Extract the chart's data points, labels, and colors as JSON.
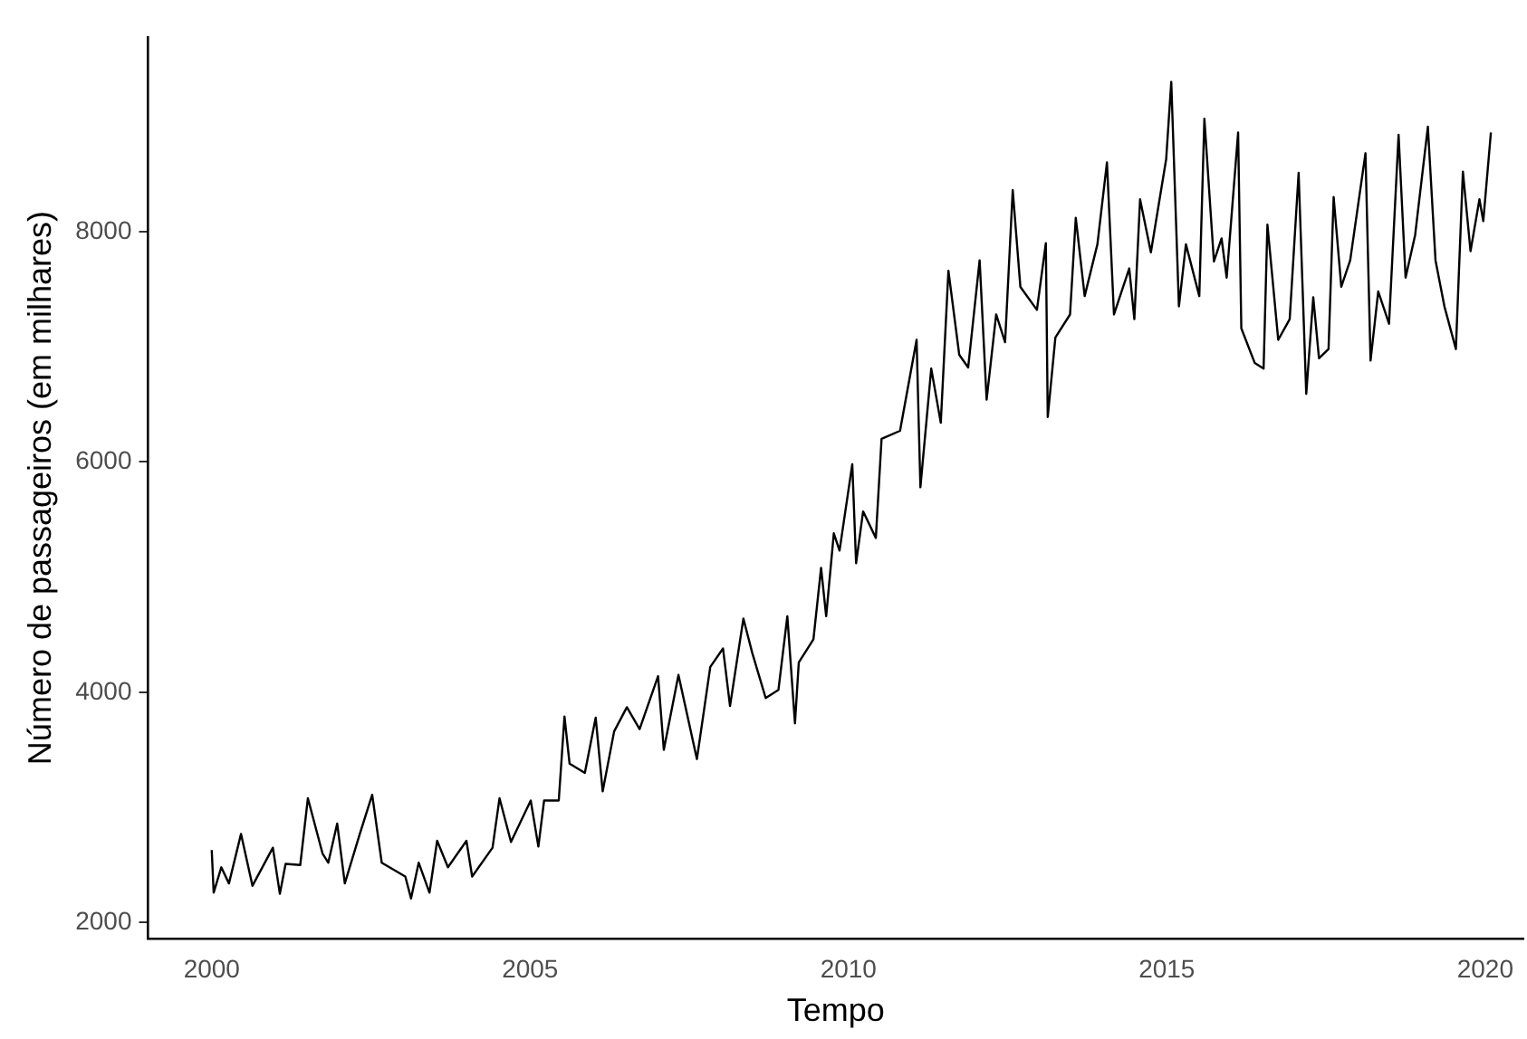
{
  "chart_data": {
    "type": "line",
    "xlabel": "Tempo",
    "ylabel": "Número de passageiros (em milhares)",
    "x": [
      2000.0,
      2000.03,
      2000.15,
      2000.27,
      2000.46,
      2000.64,
      2000.96,
      2001.07,
      2001.16,
      2001.39,
      2001.51,
      2001.74,
      2001.83,
      2001.97,
      2002.09,
      2002.32,
      2002.52,
      2002.67,
      2003.04,
      2003.13,
      2003.25,
      2003.42,
      2003.54,
      2003.71,
      2004.0,
      2004.09,
      2004.41,
      2004.52,
      2004.7,
      2005.01,
      2005.13,
      2005.22,
      2005.45,
      2005.54,
      2005.62,
      2005.86,
      2006.03,
      2006.14,
      2006.32,
      2006.52,
      2006.72,
      2007.01,
      2007.1,
      2007.33,
      2007.62,
      2007.83,
      2008.03,
      2008.14,
      2008.35,
      2008.49,
      2008.7,
      2008.9,
      2009.04,
      2009.16,
      2009.22,
      2009.45,
      2009.57,
      2009.65,
      2009.77,
      2009.86,
      2010.06,
      2010.12,
      2010.23,
      2010.43,
      2010.52,
      2010.81,
      2011.07,
      2011.13,
      2011.3,
      2011.45,
      2011.57,
      2011.74,
      2011.88,
      2012.06,
      2012.17,
      2012.32,
      2012.46,
      2012.58,
      2012.7,
      2012.96,
      2013.1,
      2013.13,
      2013.25,
      2013.48,
      2013.57,
      2013.71,
      2013.91,
      2014.06,
      2014.17,
      2014.41,
      2014.49,
      2014.58,
      2014.75,
      2014.99,
      2015.07,
      2015.19,
      2015.3,
      2015.51,
      2015.59,
      2015.74,
      2015.86,
      2015.94,
      2016.12,
      2016.17,
      2016.38,
      2016.52,
      2016.58,
      2016.75,
      2016.93,
      2017.07,
      2017.19,
      2017.3,
      2017.39,
      2017.54,
      2017.62,
      2017.74,
      2017.88,
      2018.12,
      2018.2,
      2018.32,
      2018.49,
      2018.64,
      2018.75,
      2018.9,
      2019.1,
      2019.22,
      2019.36,
      2019.54,
      2019.65,
      2019.77,
      2019.91,
      2019.97,
      2020.09
    ],
    "values": [
      2630,
      2260,
      2480,
      2340,
      2770,
      2320,
      2650,
      2250,
      2510,
      2500,
      3080,
      2600,
      2520,
      2860,
      2340,
      2760,
      3110,
      2520,
      2400,
      2210,
      2520,
      2260,
      2710,
      2480,
      2710,
      2400,
      2650,
      3080,
      2700,
      3060,
      2660,
      3060,
      3060,
      3790,
      3380,
      3300,
      3780,
      3140,
      3660,
      3870,
      3680,
      4140,
      3500,
      4150,
      3420,
      4220,
      4380,
      3880,
      4640,
      4340,
      3950,
      4020,
      4660,
      3730,
      4260,
      4460,
      5080,
      4660,
      5380,
      5230,
      5980,
      5120,
      5570,
      5340,
      6200,
      6270,
      7060,
      5780,
      6810,
      6340,
      7660,
      6930,
      6820,
      7750,
      6540,
      7280,
      7040,
      8360,
      7520,
      7320,
      7900,
      6390,
      7080,
      7280,
      8120,
      7440,
      7890,
      8600,
      7280,
      7680,
      7240,
      8280,
      7820,
      8630,
      9300,
      7350,
      7890,
      7440,
      8980,
      7740,
      7940,
      7600,
      8860,
      7160,
      6860,
      6810,
      8060,
      7060,
      7240,
      8510,
      6590,
      7430,
      6900,
      6980,
      8300,
      7520,
      7750,
      8680,
      6880,
      7480,
      7200,
      8840,
      7600,
      7970,
      8910,
      7750,
      7350,
      6980,
      8520,
      7830,
      8280,
      8090,
      8860
    ],
    "color": "#000000",
    "marker": "none",
    "line_style": "solid",
    "grid": false,
    "legend": false,
    "xlim": [
      1999,
      2020.6
    ],
    "xticks": [
      2000,
      2005,
      2010,
      2015,
      2020
    ],
    "ylim": [
      1860,
      9690
    ],
    "yticks": [
      2000,
      4000,
      6000,
      8000
    ]
  }
}
